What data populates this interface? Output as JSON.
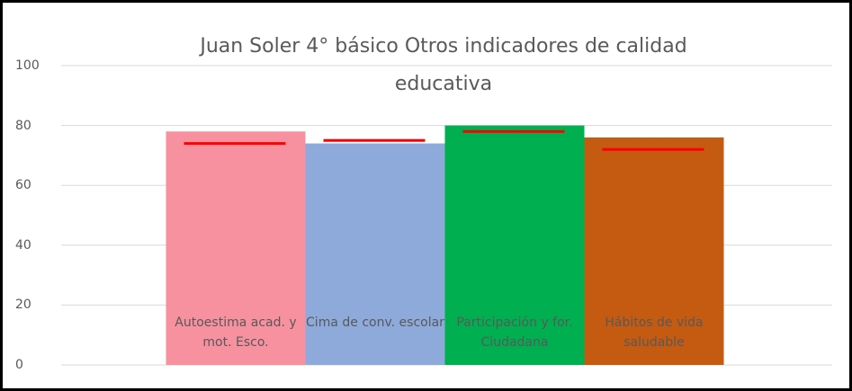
{
  "chart_data": {
    "type": "bar",
    "title": "Juan Soler 4° básico Otros indicadores de calidad educativa",
    "categories": [
      "Autoestima acad. y mot. Esco.",
      "Cima de conv. escolar",
      "Participación y for. Ciudadana",
      "Hábitos de vida saludable"
    ],
    "values": [
      78,
      74,
      80,
      76
    ],
    "colors": [
      "#f7919f",
      "#8eaadb",
      "#00b050",
      "#c55a11"
    ],
    "reference": {
      "color": "#ff0000",
      "values": [
        74,
        75,
        78,
        72
      ]
    },
    "ylim": [
      0,
      100
    ],
    "yticks": [
      0,
      20,
      40,
      60,
      80,
      100
    ],
    "grid": true
  }
}
